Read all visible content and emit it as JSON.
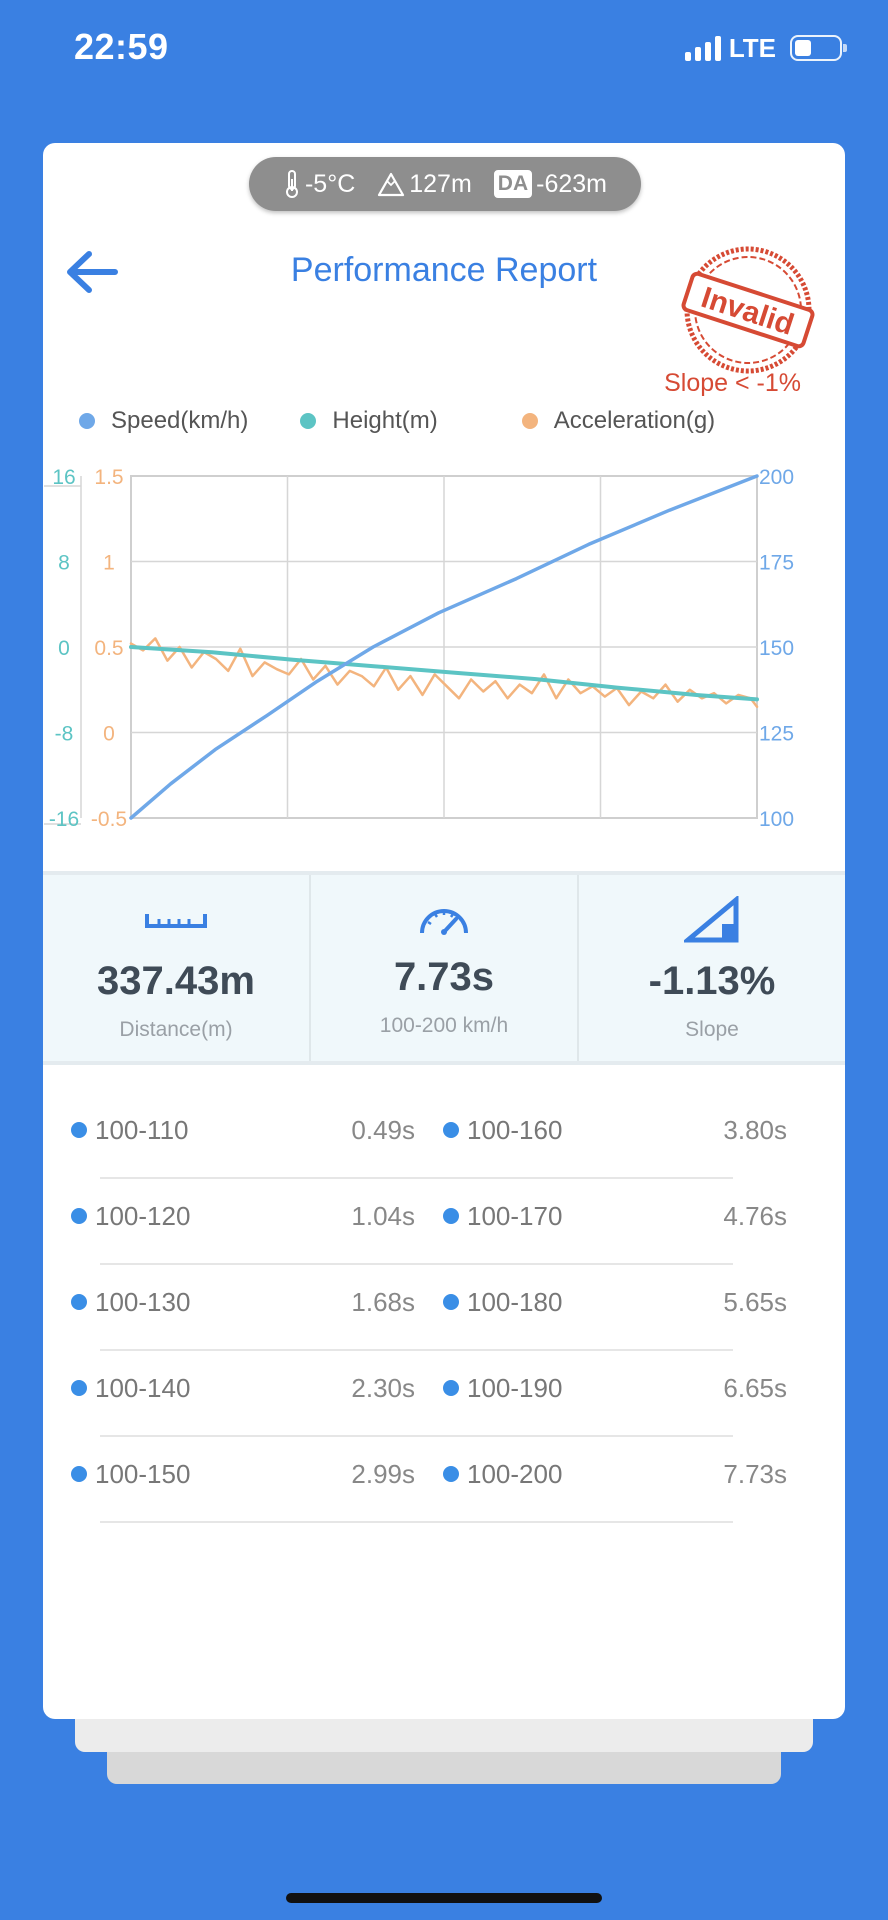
{
  "status": {
    "time": "22:59",
    "network": "LTE"
  },
  "conditions": {
    "temperature": "-5°C",
    "elevation": "127m",
    "da_label": "DA",
    "density_altitude": "-623m"
  },
  "header": {
    "title": "Performance Report",
    "stamp_text": "Invalid",
    "slope_note": "Slope < -1%"
  },
  "legend": [
    {
      "label": "Speed(km/h)",
      "color": "#6fa8e8"
    },
    {
      "label": "Height(m)",
      "color": "#5cc4c4"
    },
    {
      "label": "Acceleration(g)",
      "color": "#f3b47e"
    }
  ],
  "chart_data": {
    "type": "line",
    "axes": {
      "height_ticks": [
        "16",
        "8",
        "0",
        "-8",
        "-16"
      ],
      "accel_ticks": [
        "1.5",
        "1",
        "0.5",
        "0",
        "-0.5"
      ],
      "speed_ticks": [
        "200",
        "175",
        "150",
        "125",
        "100"
      ],
      "height_range": [
        -16,
        16
      ],
      "accel_range": [
        -0.5,
        1.5
      ],
      "speed_range": [
        100,
        200
      ],
      "x_range": [
        0,
        7.73
      ],
      "grid": true
    },
    "series": [
      {
        "name": "Speed(km/h)",
        "color": "#6fa8e8",
        "x": [
          0,
          0.49,
          1.04,
          1.68,
          2.3,
          2.99,
          3.8,
          4.76,
          5.65,
          6.65,
          7.73
        ],
        "y": [
          100,
          110,
          120,
          130,
          140,
          150,
          160,
          170,
          180,
          190,
          200
        ]
      },
      {
        "name": "Height(m)",
        "color": "#5cc4c4",
        "x": [
          0,
          1,
          2,
          3,
          4,
          5,
          6,
          7,
          7.73
        ],
        "y": [
          0,
          -0.5,
          -1.2,
          -1.8,
          -2.4,
          -3.0,
          -3.8,
          -4.5,
          -4.9
        ]
      },
      {
        "name": "Acceleration(g)",
        "color": "#f3b47e",
        "x": [
          0,
          0.15,
          0.3,
          0.45,
          0.6,
          0.75,
          0.9,
          1.05,
          1.2,
          1.35,
          1.5,
          1.65,
          1.8,
          1.95,
          2.1,
          2.25,
          2.4,
          2.55,
          2.7,
          2.85,
          3.0,
          3.15,
          3.3,
          3.45,
          3.6,
          3.75,
          3.9,
          4.05,
          4.2,
          4.35,
          4.5,
          4.65,
          4.8,
          4.95,
          5.1,
          5.25,
          5.4,
          5.55,
          5.7,
          5.85,
          6.0,
          6.15,
          6.3,
          6.45,
          6.6,
          6.75,
          6.9,
          7.05,
          7.2,
          7.35,
          7.5,
          7.65,
          7.73
        ],
        "y": [
          0.52,
          0.48,
          0.55,
          0.42,
          0.5,
          0.38,
          0.47,
          0.43,
          0.36,
          0.49,
          0.33,
          0.41,
          0.37,
          0.34,
          0.43,
          0.31,
          0.39,
          0.28,
          0.36,
          0.33,
          0.27,
          0.38,
          0.25,
          0.33,
          0.22,
          0.34,
          0.27,
          0.2,
          0.31,
          0.24,
          0.3,
          0.2,
          0.28,
          0.23,
          0.34,
          0.2,
          0.31,
          0.23,
          0.27,
          0.21,
          0.26,
          0.16,
          0.24,
          0.2,
          0.28,
          0.18,
          0.25,
          0.2,
          0.23,
          0.17,
          0.22,
          0.2,
          0.15
        ]
      }
    ]
  },
  "summary": {
    "distance_value": "337.43m",
    "distance_label": "Distance(m)",
    "time_value": "7.73s",
    "time_label": "100-200 km/h",
    "slope_value": "-1.13%",
    "slope_label": "Slope"
  },
  "splits": [
    {
      "left_range": "100-110",
      "left_time": "0.49s",
      "right_range": "100-160",
      "right_time": "3.80s"
    },
    {
      "left_range": "100-120",
      "left_time": "1.04s",
      "right_range": "100-170",
      "right_time": "4.76s"
    },
    {
      "left_range": "100-130",
      "left_time": "1.68s",
      "right_range": "100-180",
      "right_time": "5.65s"
    },
    {
      "left_range": "100-140",
      "left_time": "2.30s",
      "right_range": "100-190",
      "right_time": "6.65s"
    },
    {
      "left_range": "100-150",
      "left_time": "2.99s",
      "right_range": "100-200",
      "right_time": "7.73s"
    }
  ],
  "colors": {
    "background": "#3a80e2",
    "accent": "#3a80e2",
    "stamp": "#d64a34"
  }
}
